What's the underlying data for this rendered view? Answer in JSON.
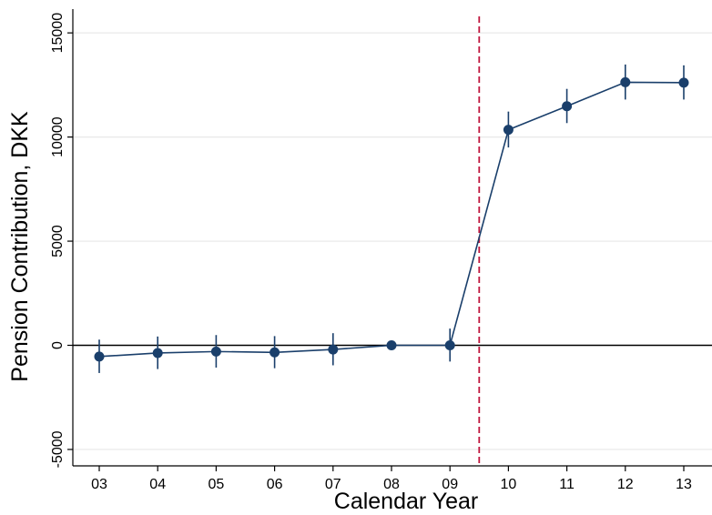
{
  "chart_data": {
    "type": "line",
    "title": "",
    "xlabel": "Calendar Year",
    "ylabel": "Pension Contribution, DKK",
    "categories": [
      "03",
      "04",
      "05",
      "06",
      "07",
      "08",
      "09",
      "10",
      "11",
      "12",
      "13"
    ],
    "series": [
      {
        "values": [
          -540,
          -370,
          -300,
          -340,
          -200,
          0,
          0,
          10350,
          11480,
          12630,
          12610
        ],
        "ci_low": [
          -1330,
          -1140,
          -1070,
          -1100,
          -960,
          0,
          -780,
          9500,
          10670,
          11800,
          11800
        ],
        "ci_high": [
          250,
          400,
          470,
          420,
          560,
          0,
          780,
          11200,
          12290,
          13460,
          13420
        ]
      }
    ],
    "yticks": [
      -5000,
      0,
      5000,
      10000,
      15000
    ],
    "ytick_labels": [
      "-5000",
      "0",
      "5000",
      "10000",
      "15000"
    ],
    "ylim": [
      -5000,
      15000
    ],
    "reference_line_y": 0,
    "event_line_between": [
      "09",
      "10"
    ],
    "grid": "horizontal",
    "legend": "none",
    "colors": {
      "series": "#1a3f6b",
      "event_line": "#c0143c",
      "grid": "#e8e8e8",
      "axis": "#000000"
    }
  }
}
